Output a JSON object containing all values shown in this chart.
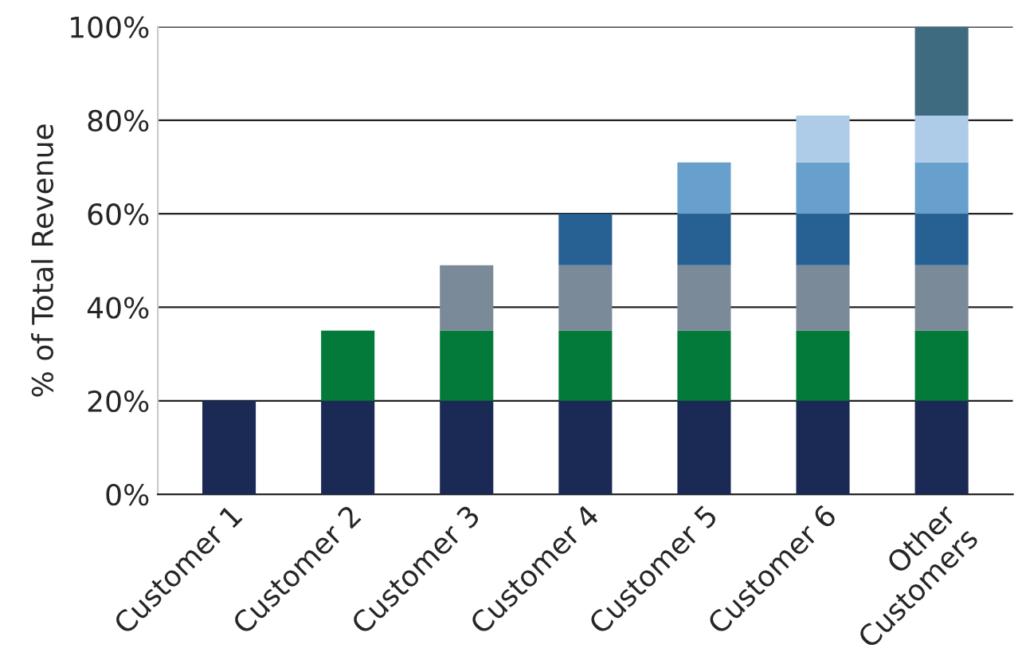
{
  "chart_data": {
    "type": "bar",
    "stacked": true,
    "ylabel": "% of Total Revenue",
    "categories": [
      "Customer 1",
      "Customer 2",
      "Customer 3",
      "Customer 4",
      "Customer 5",
      "Customer 6",
      "Other\nCustomers"
    ],
    "series": [
      {
        "color": "#1b2a55",
        "values": [
          20,
          20,
          20,
          20,
          20,
          20,
          20
        ]
      },
      {
        "color": "#047a3a",
        "values": [
          null,
          15,
          15,
          15,
          15,
          15,
          15
        ]
      },
      {
        "color": "#7a8a99",
        "values": [
          null,
          null,
          14,
          14,
          14,
          14,
          14
        ]
      },
      {
        "color": "#276093",
        "values": [
          null,
          null,
          null,
          11,
          11,
          11,
          11
        ]
      },
      {
        "color": "#67a0cc",
        "values": [
          null,
          null,
          null,
          null,
          11,
          11,
          11
        ]
      },
      {
        "color": "#aecbe8",
        "values": [
          null,
          null,
          null,
          null,
          null,
          10,
          10
        ]
      },
      {
        "color": "#3e6b80",
        "values": [
          null,
          null,
          null,
          null,
          null,
          null,
          19
        ]
      }
    ],
    "ylim": [
      0,
      100
    ],
    "yticks": [
      {
        "value": 0,
        "label": "0%"
      },
      {
        "value": 20,
        "label": "20%"
      },
      {
        "value": 40,
        "label": "40%"
      },
      {
        "value": 60,
        "label": "60%"
      },
      {
        "value": 80,
        "label": "80%"
      },
      {
        "value": 100,
        "label": "100%"
      }
    ],
    "grid": "y",
    "legend": false
  }
}
